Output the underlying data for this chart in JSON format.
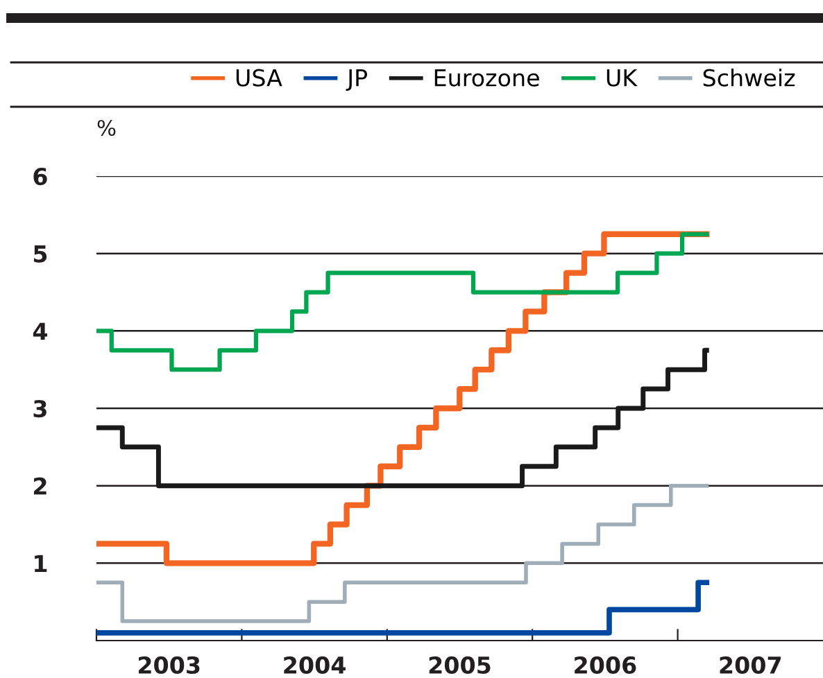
{
  "chart_data": {
    "type": "step",
    "ylabel": "%",
    "series": [
      {
        "name": "USA",
        "color": "#f26522",
        "x": [
          2003.0,
          2003.482,
          2004.496,
          2004.609,
          2004.722,
          2004.862,
          2004.955,
          2005.088,
          2005.221,
          2005.337,
          2005.499,
          2005.606,
          2005.719,
          2005.836,
          2005.953,
          2006.082,
          2006.234,
          2006.357,
          2006.493,
          2007.199
        ],
        "values": [
          1.25,
          1.0,
          1.25,
          1.5,
          1.75,
          2.0,
          2.25,
          2.5,
          2.75,
          3.0,
          3.25,
          3.5,
          3.75,
          4.0,
          4.25,
          4.5,
          4.75,
          5.0,
          5.25,
          5.25
        ]
      },
      {
        "name": "JP",
        "color": "#0047a0",
        "x": [
          2003.0,
          2006.529,
          2007.141,
          2007.199
        ],
        "values": [
          0.1,
          0.4,
          0.75,
          0.75
        ]
      },
      {
        "name": "Eurozone",
        "color": "#1a1a1a",
        "x": [
          2003.0,
          2003.178,
          2003.427,
          2005.93,
          2006.163,
          2006.432,
          2006.59,
          2006.762,
          2006.933,
          2007.186,
          2007.199
        ],
        "values": [
          2.75,
          2.5,
          2.0,
          2.25,
          2.5,
          2.75,
          3.0,
          3.25,
          3.5,
          3.75,
          3.75
        ]
      },
      {
        "name": "UK",
        "color": "#00a650",
        "x": [
          2003.0,
          2003.104,
          2003.518,
          2003.848,
          2004.098,
          2004.347,
          2004.444,
          2004.593,
          2005.593,
          2006.587,
          2006.856,
          2007.031,
          2007.199
        ],
        "values": [
          4.0,
          3.75,
          3.5,
          3.75,
          4.0,
          4.25,
          4.5,
          4.75,
          4.5,
          4.75,
          5.0,
          5.25,
          5.25
        ]
      },
      {
        "name": "Schweiz",
        "color": "#9fadb8",
        "x": [
          2003.0,
          2003.178,
          2004.463,
          2004.709,
          2005.956,
          2006.205,
          2006.454,
          2006.7,
          2006.953,
          2007.199
        ],
        "values": [
          0.75,
          0.25,
          0.5,
          0.75,
          1.0,
          1.25,
          1.5,
          1.75,
          2.0,
          2.0
        ]
      }
    ],
    "xlim": [
      2003,
      2008
    ],
    "xticks": [
      {
        "value": 2003,
        "label": null
      },
      {
        "value": 2003.5,
        "label": "2003"
      },
      {
        "value": 2004,
        "label": null
      },
      {
        "value": 2004.5,
        "label": "2004"
      },
      {
        "value": 2005,
        "label": null
      },
      {
        "value": 2005.5,
        "label": "2005"
      },
      {
        "value": 2006,
        "label": null
      },
      {
        "value": 2006.5,
        "label": "2006"
      },
      {
        "value": 2007,
        "label": null
      },
      {
        "value": 2007.5,
        "label": "2007"
      }
    ],
    "ylim": [
      0,
      6
    ],
    "yticks": [
      1,
      2,
      3,
      4,
      5,
      6
    ],
    "grid": "y",
    "legend": "top",
    "marker": "none",
    "line_style": "solid"
  }
}
